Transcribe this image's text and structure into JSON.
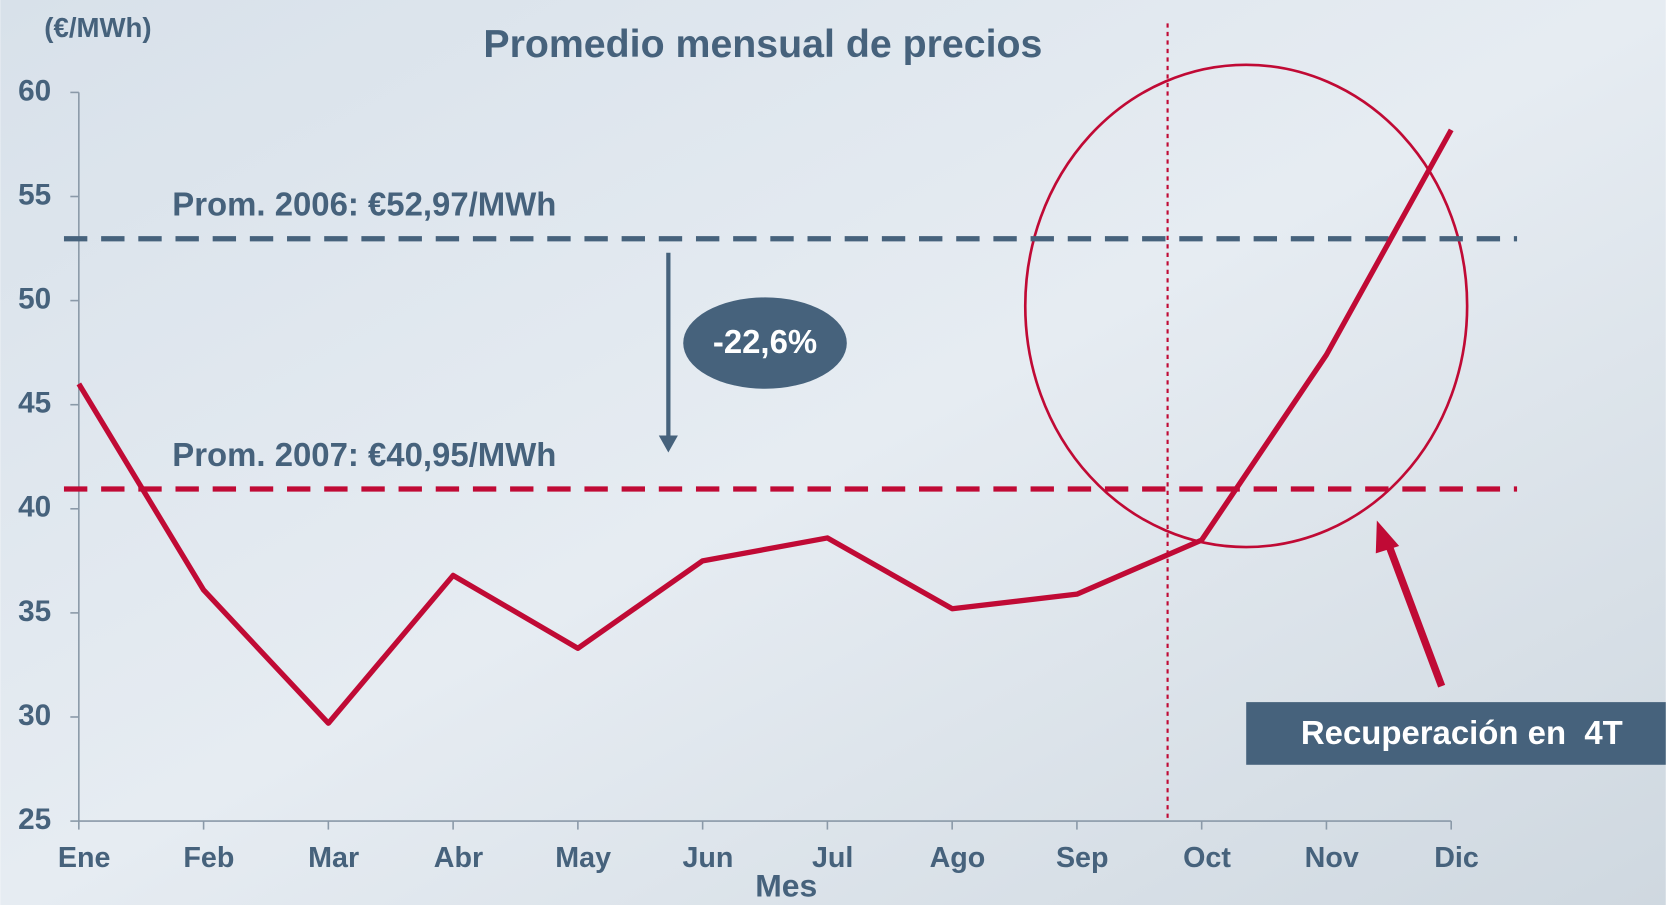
{
  "chart_data": {
    "type": "line",
    "title": "Promedio mensual de precios",
    "y_label": "(€/MWh)",
    "x_label": "Mes",
    "categories": [
      "Ene",
      "Feb",
      "Mar",
      "Abr",
      "May",
      "Jun",
      "Jul",
      "Ago",
      "Sep",
      "Oct",
      "Nov",
      "Dic"
    ],
    "values": [
      46.0,
      36.1,
      29.7,
      36.8,
      33.3,
      37.5,
      38.6,
      35.2,
      35.9,
      38.5,
      47.4,
      58.2
    ],
    "color": "#c00a35",
    "ylim": [
      25,
      60
    ],
    "yticks": [
      25,
      30,
      35,
      40,
      45,
      50,
      55,
      60
    ],
    "reference_lines": [
      {
        "value": 52.97,
        "label": "Prom. 2006: €52,97/MWh",
        "color": "#46627c"
      },
      {
        "value": 40.95,
        "label": "Prom. 2007: €40,95/MWh",
        "color": "#c00a35"
      }
    ],
    "annotations": [
      "-22,6%",
      "Recuperación en  4T"
    ]
  }
}
